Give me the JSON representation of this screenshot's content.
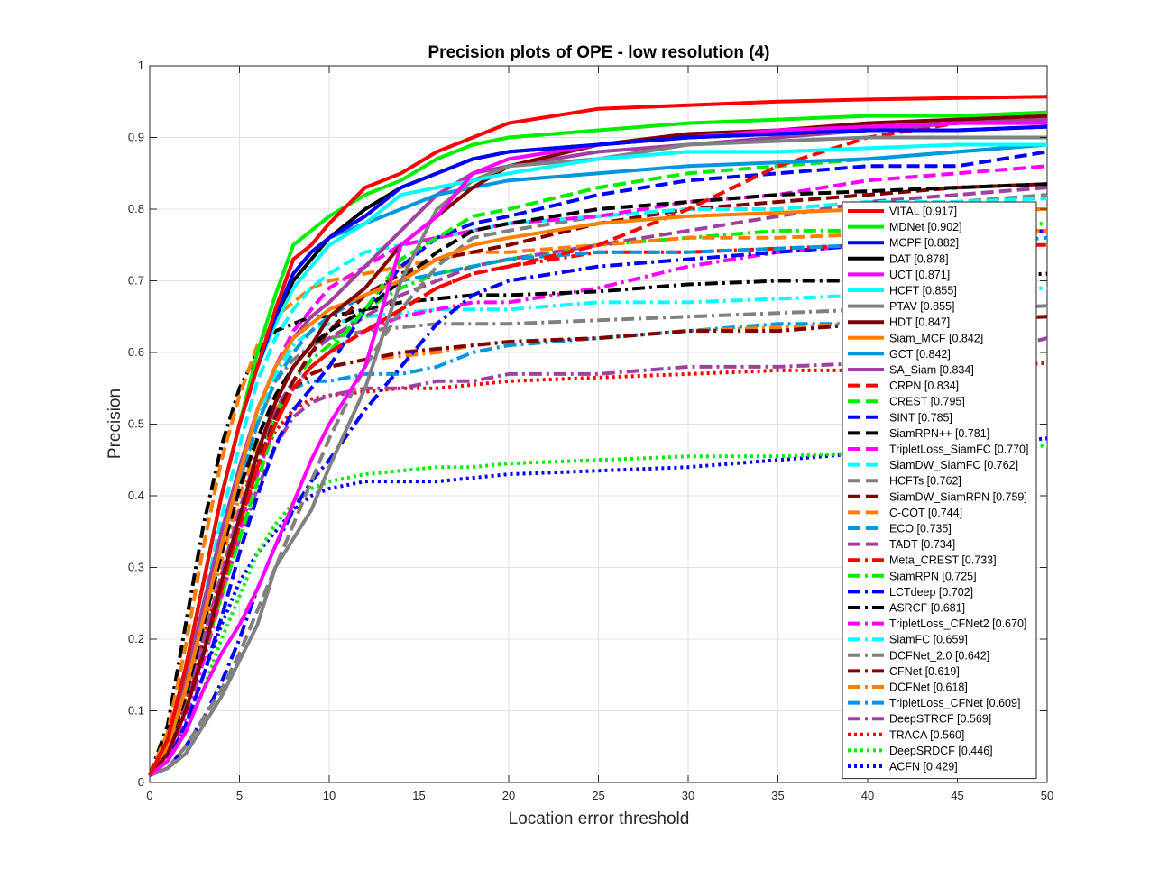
{
  "chart_data": {
    "type": "line",
    "title": "Precision plots of OPE - low resolution (4)",
    "xlabel": "Location error threshold",
    "ylabel": "Precision",
    "xlim": [
      0,
      50
    ],
    "ylim": [
      0,
      1
    ],
    "xticks": [
      "0",
      "5",
      "10",
      "15",
      "20",
      "25",
      "30",
      "35",
      "40",
      "45",
      "50"
    ],
    "yticks": [
      "0",
      "0.1",
      "0.2",
      "0.3",
      "0.4",
      "0.5",
      "0.6",
      "0.7",
      "0.8",
      "0.9",
      "1"
    ],
    "grid": true,
    "legend_position": "right",
    "x": [
      0,
      1,
      2,
      3,
      4,
      5,
      6,
      7,
      8,
      9,
      10,
      12,
      14,
      16,
      18,
      20,
      25,
      30,
      35,
      40,
      45,
      50
    ],
    "series": [
      {
        "name": "VITAL [0.917]",
        "color": "#ff0000",
        "style": "solid",
        "values": [
          0.01,
          0.06,
          0.16,
          0.28,
          0.4,
          0.5,
          0.58,
          0.66,
          0.73,
          0.75,
          0.78,
          0.83,
          0.85,
          0.88,
          0.9,
          0.92,
          0.94,
          0.945,
          0.95,
          0.953,
          0.955,
          0.957
        ]
      },
      {
        "name": "MDNet [0.902]",
        "color": "#00ee00",
        "style": "solid",
        "values": [
          0.01,
          0.06,
          0.16,
          0.28,
          0.4,
          0.5,
          0.6,
          0.68,
          0.75,
          0.77,
          0.79,
          0.82,
          0.84,
          0.87,
          0.89,
          0.9,
          0.91,
          0.92,
          0.925,
          0.93,
          0.93,
          0.935
        ]
      },
      {
        "name": "MCPF [0.882]",
        "color": "#0000ff",
        "style": "solid",
        "values": [
          0.01,
          0.06,
          0.16,
          0.28,
          0.4,
          0.5,
          0.58,
          0.65,
          0.71,
          0.74,
          0.76,
          0.79,
          0.83,
          0.85,
          0.87,
          0.88,
          0.89,
          0.9,
          0.905,
          0.91,
          0.91,
          0.915
        ]
      },
      {
        "name": "DAT [0.878]",
        "color": "#000000",
        "style": "solid",
        "values": [
          0.01,
          0.06,
          0.16,
          0.28,
          0.4,
          0.5,
          0.58,
          0.65,
          0.7,
          0.73,
          0.76,
          0.8,
          0.83,
          0.85,
          0.87,
          0.88,
          0.89,
          0.9,
          0.905,
          0.91,
          0.91,
          0.915
        ]
      },
      {
        "name": "UCT [0.871]",
        "color": "#ff00ff",
        "style": "solid",
        "values": [
          0.01,
          0.03,
          0.07,
          0.13,
          0.18,
          0.22,
          0.27,
          0.33,
          0.39,
          0.45,
          0.5,
          0.58,
          0.75,
          0.79,
          0.85,
          0.87,
          0.89,
          0.9,
          0.91,
          0.915,
          0.92,
          0.92
        ]
      },
      {
        "name": "HCFT [0.855]",
        "color": "#00ffff",
        "style": "solid",
        "values": [
          0.01,
          0.06,
          0.16,
          0.28,
          0.4,
          0.5,
          0.58,
          0.64,
          0.69,
          0.72,
          0.75,
          0.78,
          0.82,
          0.83,
          0.84,
          0.85,
          0.87,
          0.88,
          0.88,
          0.885,
          0.89,
          0.89
        ]
      },
      {
        "name": "PTAV [0.855]",
        "color": "#808080",
        "style": "solid",
        "values": [
          0.01,
          0.02,
          0.04,
          0.08,
          0.12,
          0.17,
          0.22,
          0.3,
          0.34,
          0.38,
          0.44,
          0.55,
          0.7,
          0.8,
          0.84,
          0.86,
          0.87,
          0.89,
          0.895,
          0.9,
          0.9,
          0.9
        ]
      },
      {
        "name": "HDT [0.847]",
        "color": "#800000",
        "style": "solid",
        "values": [
          0.01,
          0.04,
          0.1,
          0.18,
          0.28,
          0.37,
          0.46,
          0.53,
          0.58,
          0.61,
          0.65,
          0.69,
          0.75,
          0.79,
          0.83,
          0.86,
          0.89,
          0.905,
          0.91,
          0.92,
          0.925,
          0.93
        ]
      },
      {
        "name": "Siam_MCF [0.842]",
        "color": "#ff8000",
        "style": "solid",
        "values": [
          0.01,
          0.05,
          0.13,
          0.23,
          0.33,
          0.43,
          0.52,
          0.58,
          0.62,
          0.64,
          0.66,
          0.68,
          0.7,
          0.73,
          0.75,
          0.76,
          0.78,
          0.79,
          0.795,
          0.8,
          0.8,
          0.8
        ]
      },
      {
        "name": "GCT [0.842]",
        "color": "#0096e0",
        "style": "solid",
        "values": [
          0.01,
          0.06,
          0.16,
          0.28,
          0.4,
          0.5,
          0.58,
          0.65,
          0.71,
          0.74,
          0.76,
          0.78,
          0.8,
          0.82,
          0.83,
          0.84,
          0.85,
          0.86,
          0.865,
          0.87,
          0.88,
          0.89
        ]
      },
      {
        "name": "SA_Siam [0.834]",
        "color": "#a040a0",
        "style": "solid",
        "values": [
          0.01,
          0.05,
          0.14,
          0.25,
          0.35,
          0.44,
          0.52,
          0.58,
          0.62,
          0.65,
          0.67,
          0.72,
          0.77,
          0.82,
          0.85,
          0.86,
          0.88,
          0.89,
          0.9,
          0.91,
          0.92,
          0.925
        ]
      },
      {
        "name": "CRPN [0.834]",
        "color": "#ff0000",
        "style": "dash",
        "values": [
          0.01,
          0.04,
          0.1,
          0.18,
          0.27,
          0.36,
          0.44,
          0.5,
          0.55,
          0.58,
          0.6,
          0.63,
          0.66,
          0.69,
          0.71,
          0.72,
          0.75,
          0.8,
          0.86,
          0.9,
          0.92,
          0.93
        ]
      },
      {
        "name": "CREST [0.795]",
        "color": "#00ee00",
        "style": "dash",
        "values": [
          0.01,
          0.04,
          0.1,
          0.18,
          0.26,
          0.34,
          0.42,
          0.5,
          0.55,
          0.58,
          0.6,
          0.66,
          0.73,
          0.76,
          0.79,
          0.8,
          0.83,
          0.85,
          0.86,
          0.87,
          0.88,
          0.89
        ]
      },
      {
        "name": "SINT [0.785]",
        "color": "#0000ff",
        "style": "dash",
        "values": [
          0.01,
          0.03,
          0.08,
          0.15,
          0.23,
          0.32,
          0.4,
          0.47,
          0.52,
          0.55,
          0.58,
          0.66,
          0.72,
          0.76,
          0.78,
          0.79,
          0.82,
          0.84,
          0.85,
          0.86,
          0.86,
          0.88
        ]
      },
      {
        "name": "SiamRPN++ [0.781]",
        "color": "#000000",
        "style": "dash",
        "values": [
          0.01,
          0.05,
          0.12,
          0.22,
          0.32,
          0.41,
          0.48,
          0.54,
          0.58,
          0.61,
          0.63,
          0.66,
          0.7,
          0.74,
          0.77,
          0.78,
          0.8,
          0.81,
          0.82,
          0.825,
          0.83,
          0.835
        ]
      },
      {
        "name": "TripletLoss_SiamFC [0.770]",
        "color": "#ff00ff",
        "style": "dash",
        "values": [
          0.01,
          0.05,
          0.13,
          0.23,
          0.34,
          0.44,
          0.52,
          0.58,
          0.63,
          0.66,
          0.69,
          0.72,
          0.75,
          0.76,
          0.77,
          0.78,
          0.79,
          0.81,
          0.82,
          0.84,
          0.85,
          0.86
        ]
      },
      {
        "name": "SiamDW_SiamFC [0.762]",
        "color": "#00ffff",
        "style": "dash",
        "values": [
          0.01,
          0.05,
          0.14,
          0.25,
          0.37,
          0.47,
          0.56,
          0.62,
          0.66,
          0.69,
          0.71,
          0.74,
          0.75,
          0.76,
          0.77,
          0.78,
          0.79,
          0.8,
          0.8,
          0.81,
          0.81,
          0.815
        ]
      },
      {
        "name": "HCFTs [0.762]",
        "color": "#808080",
        "style": "dash",
        "values": [
          0.01,
          0.02,
          0.05,
          0.09,
          0.13,
          0.18,
          0.24,
          0.3,
          0.36,
          0.42,
          0.48,
          0.58,
          0.66,
          0.72,
          0.76,
          0.77,
          0.79,
          0.8,
          0.8,
          0.81,
          0.81,
          0.82
        ]
      },
      {
        "name": "SiamDW_SiamRPN [0.759]",
        "color": "#800000",
        "style": "dash",
        "values": [
          0.01,
          0.04,
          0.1,
          0.18,
          0.27,
          0.36,
          0.44,
          0.51,
          0.56,
          0.6,
          0.63,
          0.68,
          0.71,
          0.73,
          0.74,
          0.75,
          0.78,
          0.8,
          0.81,
          0.82,
          0.83,
          0.835
        ]
      },
      {
        "name": "C-COT [0.744]",
        "color": "#ff8000",
        "style": "dash",
        "values": [
          0.01,
          0.07,
          0.19,
          0.33,
          0.45,
          0.54,
          0.61,
          0.65,
          0.67,
          0.69,
          0.7,
          0.71,
          0.72,
          0.73,
          0.74,
          0.74,
          0.75,
          0.76,
          0.76,
          0.765,
          0.77,
          0.77
        ]
      },
      {
        "name": "ECO [0.735]",
        "color": "#0096e0",
        "style": "dash",
        "values": [
          0.01,
          0.05,
          0.12,
          0.22,
          0.32,
          0.42,
          0.5,
          0.56,
          0.6,
          0.63,
          0.65,
          0.68,
          0.7,
          0.71,
          0.72,
          0.73,
          0.74,
          0.74,
          0.745,
          0.75,
          0.75,
          0.76
        ]
      },
      {
        "name": "TADT [0.734]",
        "color": "#a040a0",
        "style": "dash",
        "values": [
          0.01,
          0.04,
          0.11,
          0.2,
          0.29,
          0.38,
          0.46,
          0.52,
          0.56,
          0.6,
          0.62,
          0.65,
          0.68,
          0.7,
          0.72,
          0.73,
          0.75,
          0.77,
          0.79,
          0.81,
          0.82,
          0.83
        ]
      },
      {
        "name": "Meta_CREST [0.733]",
        "color": "#ff0000",
        "style": "dashdot",
        "values": [
          0.01,
          0.04,
          0.1,
          0.18,
          0.27,
          0.36,
          0.44,
          0.5,
          0.55,
          0.58,
          0.6,
          0.63,
          0.66,
          0.69,
          0.71,
          0.72,
          0.74,
          0.74,
          0.745,
          0.75,
          0.75,
          0.75
        ]
      },
      {
        "name": "SiamRPN [0.725]",
        "color": "#00ee00",
        "style": "dashdot",
        "values": [
          0.01,
          0.04,
          0.1,
          0.18,
          0.27,
          0.36,
          0.44,
          0.51,
          0.56,
          0.59,
          0.61,
          0.66,
          0.69,
          0.71,
          0.72,
          0.73,
          0.75,
          0.76,
          0.77,
          0.77,
          0.775,
          0.78
        ]
      },
      {
        "name": "LCTdeep [0.702]",
        "color": "#0000ff",
        "style": "dashdot",
        "values": [
          0.01,
          0.02,
          0.05,
          0.09,
          0.14,
          0.2,
          0.27,
          0.33,
          0.38,
          0.42,
          0.45,
          0.52,
          0.58,
          0.64,
          0.68,
          0.7,
          0.72,
          0.73,
          0.74,
          0.75,
          0.76,
          0.77
        ]
      },
      {
        "name": "ASRCF [0.681]",
        "color": "#000000",
        "style": "dashdot",
        "values": [
          0.01,
          0.08,
          0.22,
          0.36,
          0.47,
          0.55,
          0.6,
          0.63,
          0.64,
          0.65,
          0.65,
          0.66,
          0.67,
          0.675,
          0.68,
          0.68,
          0.685,
          0.695,
          0.7,
          0.7,
          0.705,
          0.71
        ]
      },
      {
        "name": "TripletLoss_CFNet2 [0.670]",
        "color": "#ff00ff",
        "style": "dashdot",
        "values": [
          0.01,
          0.03,
          0.09,
          0.17,
          0.26,
          0.35,
          0.43,
          0.5,
          0.55,
          0.58,
          0.6,
          0.63,
          0.65,
          0.66,
          0.67,
          0.67,
          0.69,
          0.72,
          0.74,
          0.75,
          0.76,
          0.77
        ]
      },
      {
        "name": "SiamFC [0.659]",
        "color": "#00ffff",
        "style": "dashdot",
        "values": [
          0.01,
          0.05,
          0.13,
          0.23,
          0.34,
          0.43,
          0.51,
          0.57,
          0.61,
          0.63,
          0.64,
          0.65,
          0.655,
          0.66,
          0.66,
          0.66,
          0.67,
          0.67,
          0.675,
          0.68,
          0.685,
          0.69
        ]
      },
      {
        "name": "DCFNet_2.0 [0.642]",
        "color": "#808080",
        "style": "dashdot",
        "values": [
          0.01,
          0.05,
          0.13,
          0.23,
          0.33,
          0.42,
          0.5,
          0.56,
          0.59,
          0.61,
          0.62,
          0.63,
          0.635,
          0.64,
          0.64,
          0.64,
          0.645,
          0.65,
          0.655,
          0.66,
          0.66,
          0.665
        ]
      },
      {
        "name": "CFNet [0.619]",
        "color": "#800000",
        "style": "dashdot",
        "values": [
          0.01,
          0.04,
          0.1,
          0.19,
          0.28,
          0.37,
          0.45,
          0.51,
          0.55,
          0.57,
          0.58,
          0.59,
          0.6,
          0.605,
          0.61,
          0.615,
          0.62,
          0.63,
          0.63,
          0.64,
          0.645,
          0.65
        ]
      },
      {
        "name": "DCFNet [0.618]",
        "color": "#ff8000",
        "style": "dashdot",
        "values": [
          0.01,
          0.05,
          0.12,
          0.22,
          0.31,
          0.4,
          0.47,
          0.52,
          0.55,
          0.57,
          0.58,
          0.59,
          0.595,
          0.6,
          0.61,
          0.615,
          0.62,
          0.63,
          0.635,
          0.64,
          0.645,
          0.65
        ]
      },
      {
        "name": "TripletLoss_CFNet [0.609]",
        "color": "#0096e0",
        "style": "dashdot",
        "values": [
          0.01,
          0.05,
          0.12,
          0.22,
          0.31,
          0.4,
          0.47,
          0.52,
          0.55,
          0.56,
          0.56,
          0.57,
          0.57,
          0.58,
          0.6,
          0.61,
          0.62,
          0.63,
          0.64,
          0.64,
          0.645,
          0.65
        ]
      },
      {
        "name": "DeepSTRCF [0.569]",
        "color": "#a040a0",
        "style": "dashdot",
        "values": [
          0.01,
          0.04,
          0.1,
          0.18,
          0.26,
          0.34,
          0.41,
          0.47,
          0.51,
          0.53,
          0.54,
          0.55,
          0.55,
          0.56,
          0.56,
          0.57,
          0.57,
          0.58,
          0.58,
          0.585,
          0.59,
          0.62
        ]
      },
      {
        "name": "TRACA [0.560]",
        "color": "#ff0000",
        "style": "dot",
        "values": [
          0.01,
          0.04,
          0.11,
          0.2,
          0.29,
          0.37,
          0.44,
          0.49,
          0.52,
          0.535,
          0.54,
          0.545,
          0.55,
          0.55,
          0.555,
          0.56,
          0.565,
          0.57,
          0.575,
          0.575,
          0.58,
          0.585
        ]
      },
      {
        "name": "DeepSRDCF [0.446]",
        "color": "#00ee00",
        "style": "dot",
        "values": [
          0.01,
          0.03,
          0.07,
          0.13,
          0.2,
          0.26,
          0.32,
          0.36,
          0.39,
          0.41,
          0.42,
          0.43,
          0.435,
          0.44,
          0.44,
          0.445,
          0.45,
          0.455,
          0.455,
          0.46,
          0.465,
          0.47
        ]
      },
      {
        "name": "ACFN [0.429]",
        "color": "#0000ff",
        "style": "dot",
        "values": [
          0.01,
          0.03,
          0.08,
          0.15,
          0.22,
          0.28,
          0.32,
          0.35,
          0.38,
          0.4,
          0.41,
          0.42,
          0.42,
          0.42,
          0.425,
          0.43,
          0.435,
          0.44,
          0.45,
          0.46,
          0.47,
          0.48
        ]
      }
    ]
  }
}
